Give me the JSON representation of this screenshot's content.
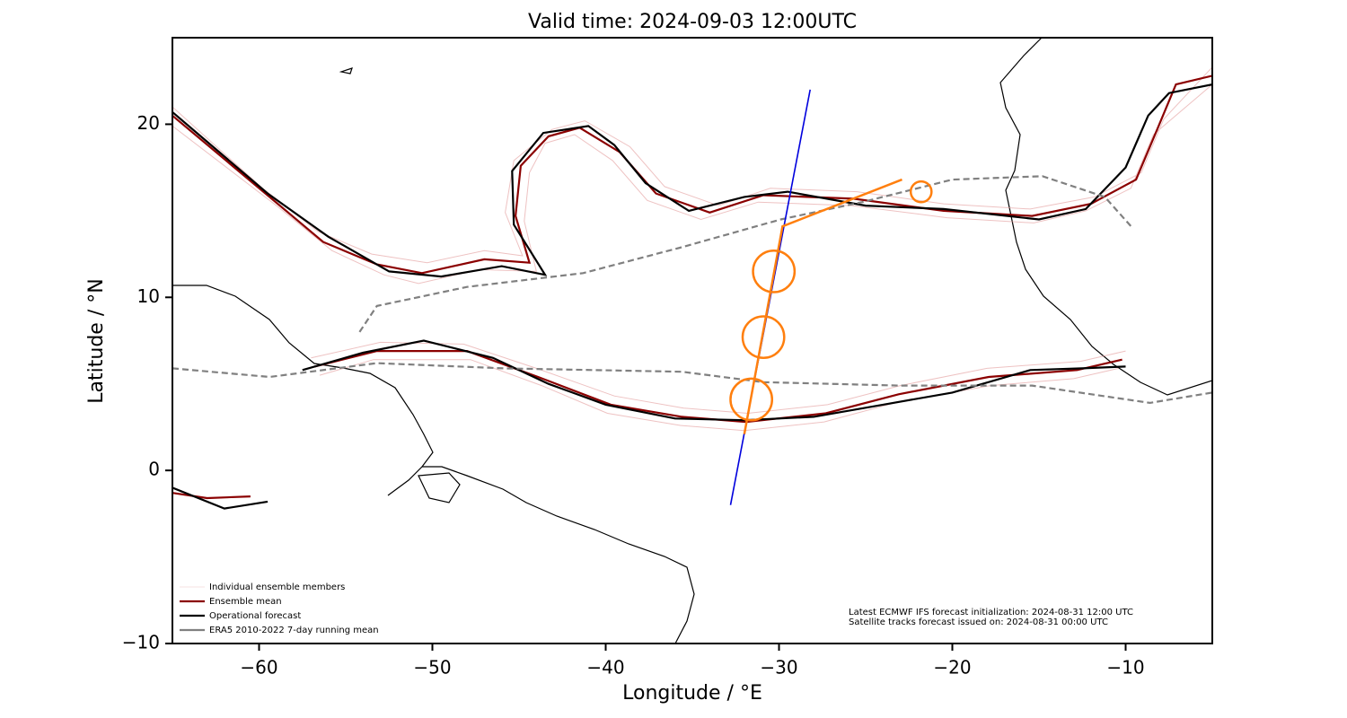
{
  "chart_data": {
    "type": "map",
    "title": "Valid time: 2024-09-03 12:00UTC",
    "xlabel": "Longitude / °E",
    "ylabel": "Latitude / °N",
    "xlim": [
      -65,
      -5
    ],
    "ylim": [
      -10,
      25
    ],
    "xticks": [
      {
        "value": -60,
        "label": "−60"
      },
      {
        "value": -50,
        "label": "−50"
      },
      {
        "value": -40,
        "label": "−40"
      },
      {
        "value": -30,
        "label": "−30"
      },
      {
        "value": -20,
        "label": "−20"
      },
      {
        "value": -10,
        "label": "−10"
      }
    ],
    "yticks": [
      {
        "value": -10,
        "label": "−10"
      },
      0,
      10,
      20
    ],
    "legend": "lower left",
    "series": [
      {
        "name": "Individual ensemble members",
        "color": "#e39a9a",
        "dashed": false,
        "x": [
          -65,
          -59.8,
          -56.6,
          -53.5,
          -50.3,
          -47,
          -44.8,
          -45.8,
          -45.3,
          -43.1,
          -41.2,
          -38.6,
          -36.6,
          -33.5,
          -30.5,
          -25.5,
          -20.5,
          -15.5,
          -11.8,
          -9.1,
          -7.8,
          -5,
          null,
          -65,
          -59,
          -55.8,
          -52.8,
          -50.8,
          -47.3,
          -44,
          -44.7,
          -44.4,
          -43.5,
          -41.8,
          -39.6,
          -37.6,
          -34.5,
          -31.2,
          -25.8,
          -20.3,
          -15.3,
          -12.3,
          -9.7,
          -8.4,
          -5,
          null,
          -57,
          -53,
          -48.2,
          -44,
          -39.5,
          -35.5,
          -31.8,
          -27.2,
          -23,
          -18,
          -12.6,
          -10,
          null,
          -56.5,
          -53.4,
          -47.8,
          -43.7,
          -39.9,
          -35.7,
          -32,
          -27.4,
          -23.3,
          -17.8,
          -13,
          -10.4
        ],
        "y": [
          21,
          16.3,
          13.8,
          12.5,
          12,
          12.7,
          12.4,
          14.9,
          17.9,
          19.7,
          20.2,
          18.7,
          16.4,
          15.3,
          16.3,
          16.1,
          15.4,
          15.1,
          15.8,
          17.2,
          20.3,
          23.3,
          null,
          19.9,
          15.3,
          12.7,
          11.3,
          10.8,
          11.6,
          11.5,
          14.4,
          17.2,
          18.9,
          19.4,
          17.9,
          15.6,
          14.5,
          15.5,
          15.3,
          14.6,
          14.3,
          15,
          16.3,
          19.4,
          22.3,
          null,
          6.5,
          7.4,
          7.3,
          5.9,
          4.3,
          3.6,
          3.3,
          3.8,
          4.9,
          5.9,
          6.3,
          6.9,
          null,
          5.5,
          6.4,
          6.4,
          4.9,
          3.3,
          2.6,
          2.3,
          2.8,
          3.9,
          4.9,
          5.3,
          5.9
        ]
      },
      {
        "name": "Ensemble mean",
        "color": "#8b0000",
        "dashed": false,
        "x": [
          -65,
          -59.4,
          -56.3,
          -53.2,
          -50.6,
          -47,
          -44.4,
          -45.2,
          -44.9,
          -43.3,
          -41.5,
          -39.2,
          -37.1,
          -34,
          -30.9,
          -25.7,
          -20.5,
          -15.4,
          -12,
          -9.4,
          -8.1,
          -7.1,
          -5,
          null,
          -56.8,
          -53.2,
          -48,
          -43.9,
          -39.7,
          -35.6,
          -31.9,
          -27.3,
          -23.1,
          -17.9,
          -12.8,
          -10.2,
          null,
          -65,
          -63,
          -60.5
        ],
        "y": [
          20.5,
          15.8,
          13.2,
          11.9,
          11.4,
          12.2,
          12,
          14.7,
          17.6,
          19.3,
          19.8,
          18.4,
          16,
          14.9,
          15.9,
          15.7,
          15,
          14.7,
          15.4,
          16.8,
          19.9,
          22.3,
          22.8,
          null,
          6,
          6.9,
          6.9,
          5.4,
          3.8,
          3.1,
          2.8,
          3.3,
          4.4,
          5.4,
          5.8,
          6.4,
          null,
          -1.3,
          -1.6,
          -1.5
        ]
      },
      {
        "name": "Operational forecast",
        "color": "#000000",
        "dashed": false,
        "x": [
          -65,
          -59.5,
          -56,
          -52.5,
          -49.5,
          -46,
          -43.5,
          -45.3,
          -45.4,
          -43.6,
          -41,
          -39.5,
          -37.7,
          -35.2,
          -32,
          -29.5,
          -25,
          -20.5,
          -15,
          -12.3,
          -10,
          -8.7,
          -7.5,
          -5,
          null,
          -57.5,
          -54,
          -50.5,
          -46.5,
          -43.3,
          -40,
          -36,
          -32,
          -28,
          -24,
          -20,
          -15.5,
          -12.5,
          -10,
          null,
          -65,
          -62,
          -59.5
        ],
        "y": [
          20.7,
          16,
          13.5,
          11.5,
          11.2,
          11.8,
          11.3,
          14.2,
          17.3,
          19.5,
          19.9,
          18.8,
          16.6,
          15,
          15.8,
          16.1,
          15.3,
          15.1,
          14.5,
          15.1,
          17.5,
          20.5,
          21.8,
          22.3,
          null,
          5.8,
          6.8,
          7.5,
          6.5,
          5,
          3.8,
          3,
          2.9,
          3.1,
          3.8,
          4.5,
          5.8,
          5.9,
          6,
          null,
          -1,
          -2.2,
          -1.8
        ]
      },
      {
        "name": "ERA5 2010-2022 7-day running mean",
        "color": "#808080",
        "dashed": true,
        "x": [
          -54.2,
          -53.2,
          -48,
          -41.3,
          -35.6,
          -29.9,
          -25.2,
          -20,
          -14.8,
          -11.2,
          -9.6,
          null,
          -65,
          -59.4,
          -53.2,
          -45.9,
          -35.6,
          -30.9,
          -23.1,
          -15.4,
          -8.6,
          -5
        ],
        "y": [
          8,
          9.5,
          10.6,
          11.4,
          12.9,
          14.5,
          15.5,
          16.8,
          17,
          15.8,
          14,
          null,
          5.9,
          5.4,
          6.2,
          5.9,
          5.7,
          5.1,
          4.9,
          4.9,
          3.9,
          4.5
        ]
      }
    ],
    "tracks": [
      {
        "color": "#0000dd",
        "x": [
          -32.8,
          -28.2
        ],
        "y": [
          -2,
          22
        ]
      },
      {
        "color": "#ff7f0e",
        "x": [
          -32,
          -29.8,
          -22.9
        ],
        "y": [
          2.1,
          14.1,
          16.8
        ]
      }
    ],
    "circles": {
      "color": "#ff7f0e",
      "x": [
        -31.6,
        -30.9,
        -30.3,
        -21.8
      ],
      "y": [
        4.1,
        7.7,
        11.5,
        16.1
      ],
      "radius": [
        1.2,
        1.2,
        1.2,
        0.6
      ]
    },
    "annotations": [
      "Latest ECMWF IFS forecast initialization: 2024-08-31 12:00 UTC",
      "Satellite tracks forecast issued on: 2024-08-31 00:00 UTC"
    ]
  }
}
